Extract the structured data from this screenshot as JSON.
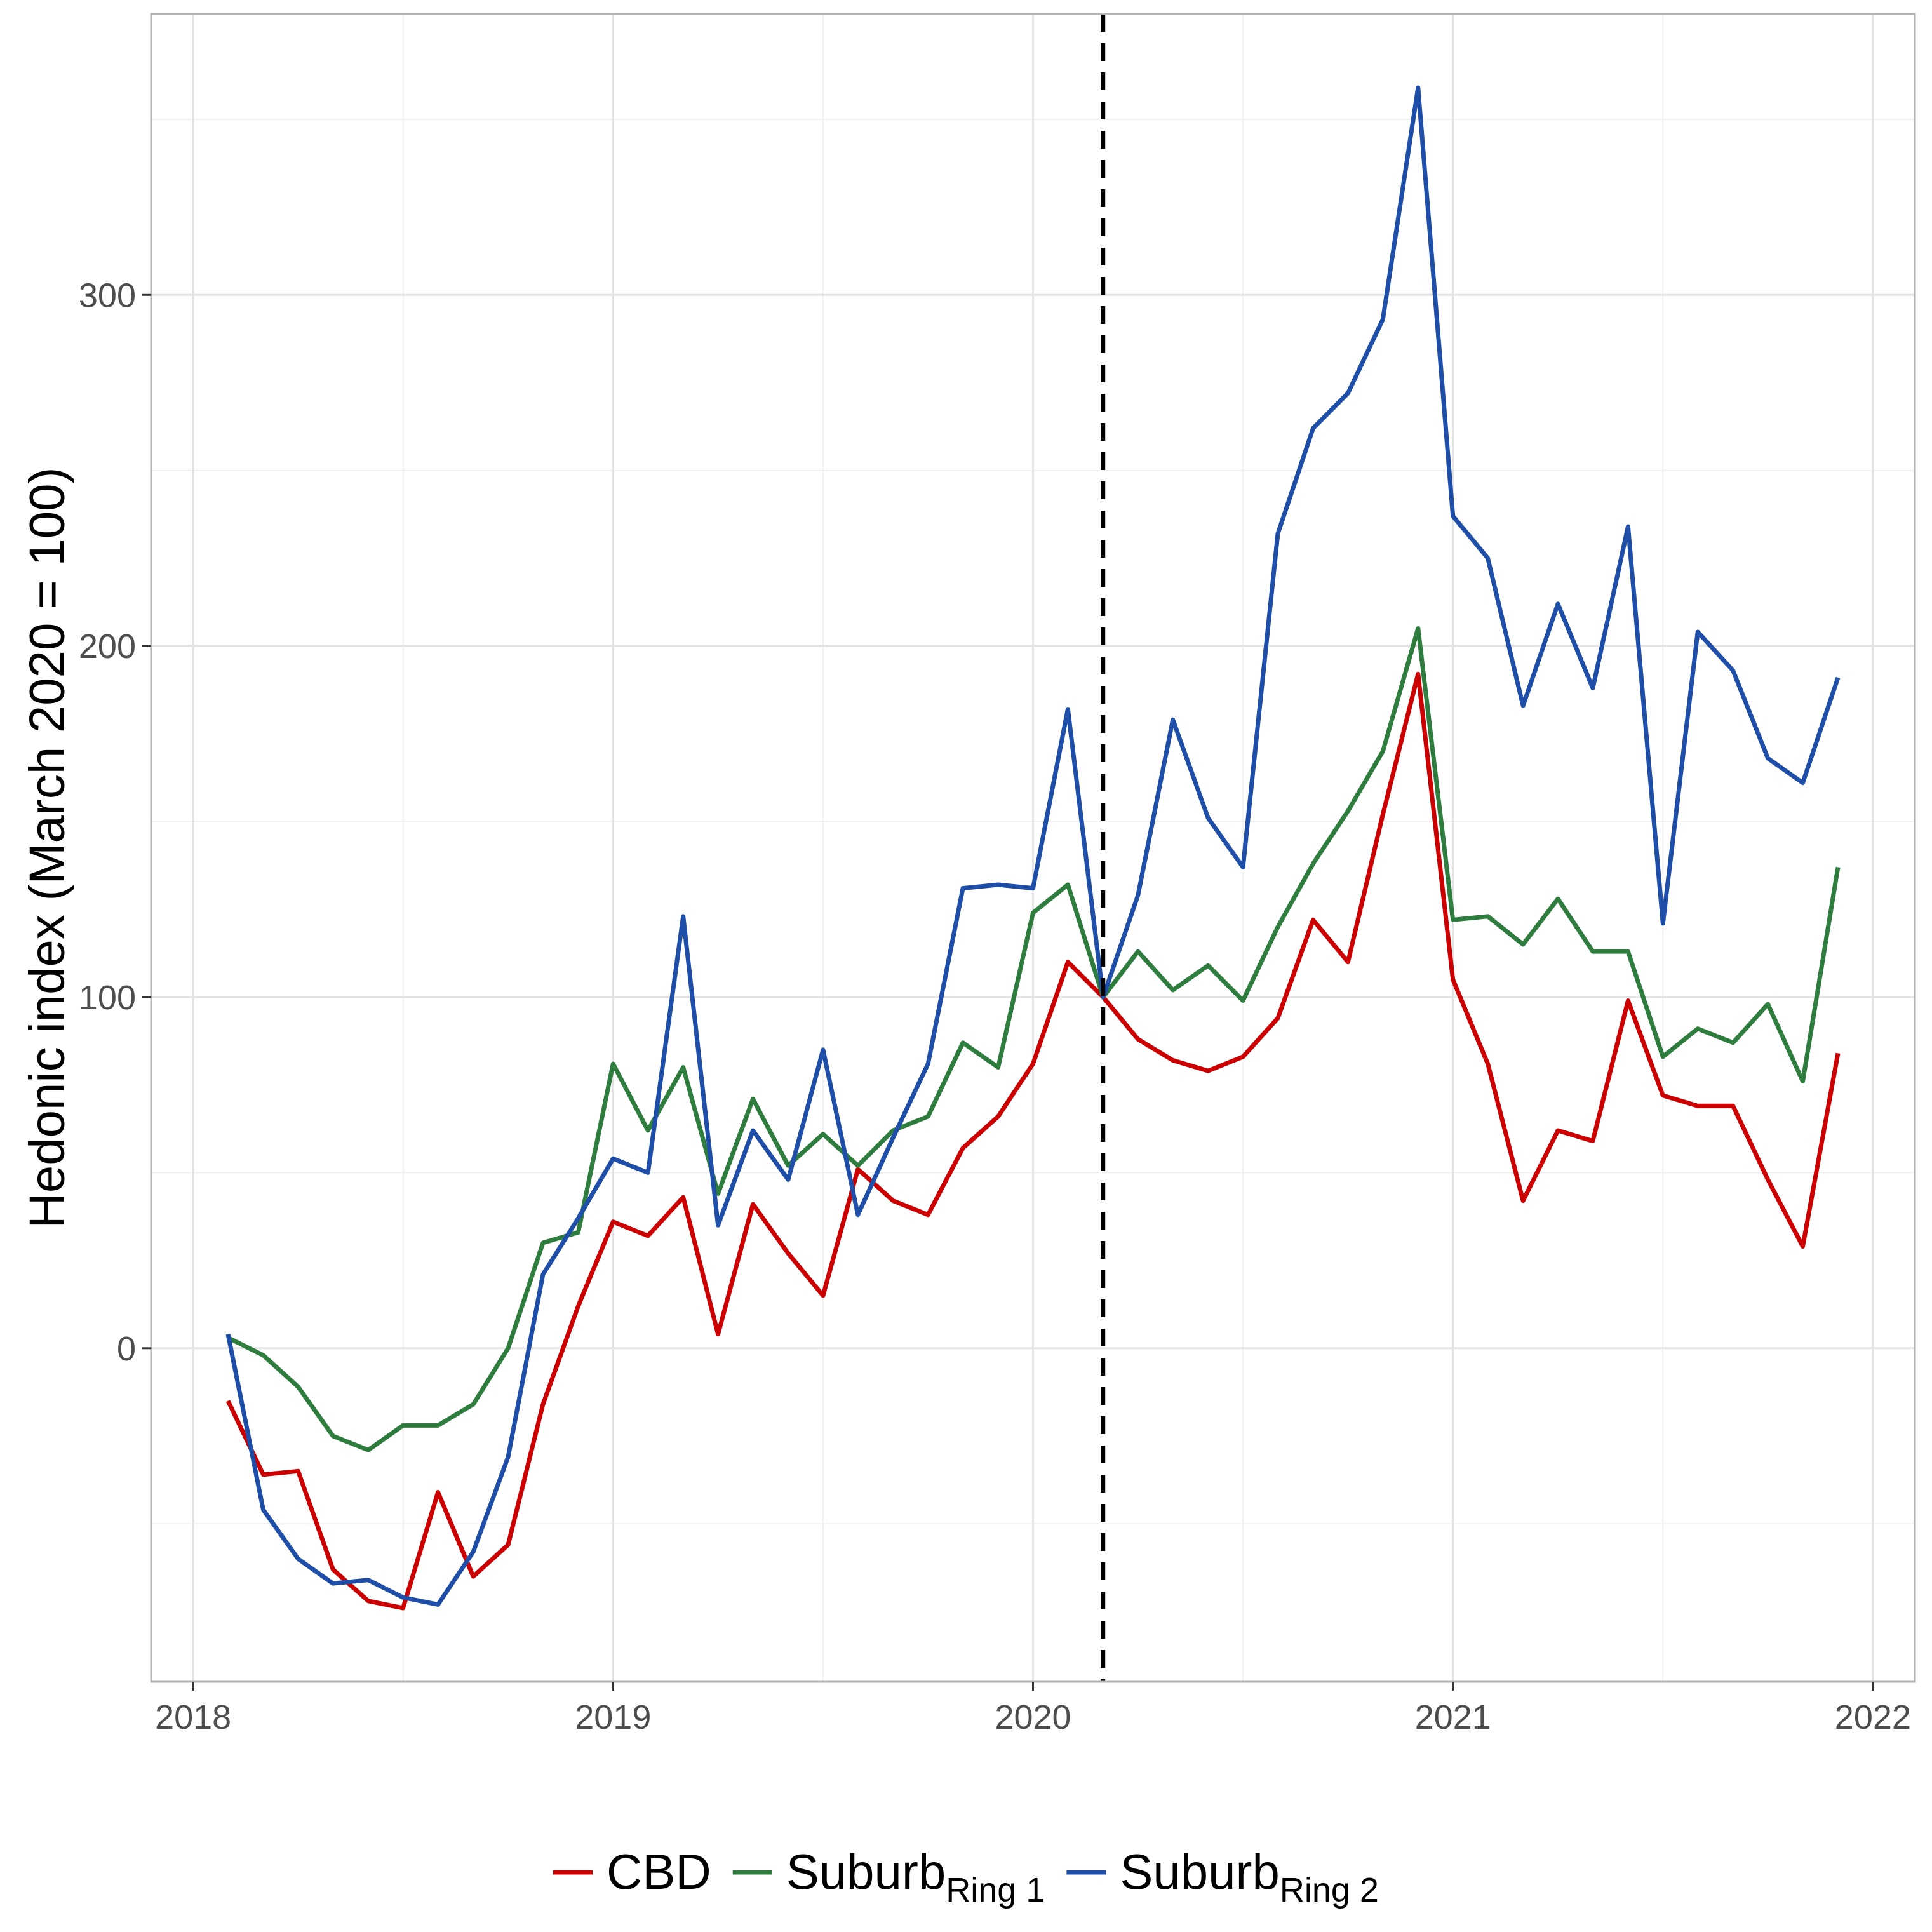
{
  "chart_data": {
    "type": "line",
    "xlabel": "",
    "ylabel": "Hedonic index (March 2020 = 100)",
    "xlim": [
      2017.9,
      2022.1
    ],
    "ylim": [
      -95,
      380
    ],
    "x_ticks": [
      2018,
      2019,
      2020,
      2021,
      2022
    ],
    "x_tick_labels": [
      "2018",
      "2019",
      "2020",
      "2021",
      "2022"
    ],
    "y_ticks": [
      0,
      100,
      200,
      300
    ],
    "y_tick_labels": [
      "0",
      "100",
      "200",
      "300"
    ],
    "grid": true,
    "legend_position": "bottom",
    "annotations": [
      {
        "type": "vline",
        "x": 2020.1667,
        "style": "dashed",
        "color": "#000000"
      }
    ],
    "x": [
      2018.083,
      2018.167,
      2018.25,
      2018.333,
      2018.417,
      2018.5,
      2018.583,
      2018.667,
      2018.75,
      2018.833,
      2018.917,
      2019.0,
      2019.083,
      2019.167,
      2019.25,
      2019.333,
      2019.417,
      2019.5,
      2019.583,
      2019.667,
      2019.75,
      2019.833,
      2019.917,
      2020.0,
      2020.083,
      2020.167,
      2020.25,
      2020.333,
      2020.417,
      2020.5,
      2020.583,
      2020.667,
      2020.75,
      2020.833,
      2020.917,
      2021.0,
      2021.083,
      2021.167,
      2021.25,
      2021.333,
      2021.417,
      2021.5,
      2021.583,
      2021.667,
      2021.75,
      2021.833,
      2021.917
    ],
    "series": [
      {
        "name": "CBD",
        "color": "#cc0000",
        "values": [
          -15,
          -36,
          -35,
          -63,
          -72,
          -74,
          -41,
          -65,
          -56,
          -16,
          12,
          36,
          32,
          43,
          4,
          41,
          27,
          15,
          51,
          42,
          38,
          57,
          66,
          81,
          110,
          100,
          88,
          82,
          79,
          83,
          94,
          122,
          110,
          152,
          192,
          105,
          81,
          42,
          62,
          59,
          99,
          72,
          69,
          69,
          48,
          29,
          84
        ]
      },
      {
        "name": "Suburb",
        "subscript": "Ring 1",
        "color": "#2e7d3e",
        "values": [
          3,
          -2,
          -11,
          -25,
          -29,
          -22,
          -22,
          -16,
          0,
          30,
          33,
          81,
          62,
          80,
          44,
          71,
          52,
          61,
          52,
          62,
          66,
          87,
          80,
          124,
          132,
          100,
          113,
          102,
          109,
          99,
          120,
          138,
          153,
          170,
          205,
          122,
          123,
          115,
          128,
          113,
          113,
          83,
          91,
          87,
          98,
          76,
          137
        ]
      },
      {
        "name": "Suburb",
        "subscript": "Ring 2",
        "color": "#1f4ea8",
        "values": [
          4,
          -46,
          -60,
          -67,
          -66,
          -71,
          -73,
          -58,
          -31,
          21,
          37,
          54,
          50,
          123,
          35,
          62,
          48,
          85,
          38,
          60,
          81,
          131,
          132,
          131,
          182,
          100,
          129,
          179,
          151,
          137,
          232,
          262,
          272,
          293,
          359,
          237,
          225,
          183,
          212,
          188,
          234,
          121,
          204,
          193,
          168,
          161,
          191
        ]
      }
    ]
  }
}
